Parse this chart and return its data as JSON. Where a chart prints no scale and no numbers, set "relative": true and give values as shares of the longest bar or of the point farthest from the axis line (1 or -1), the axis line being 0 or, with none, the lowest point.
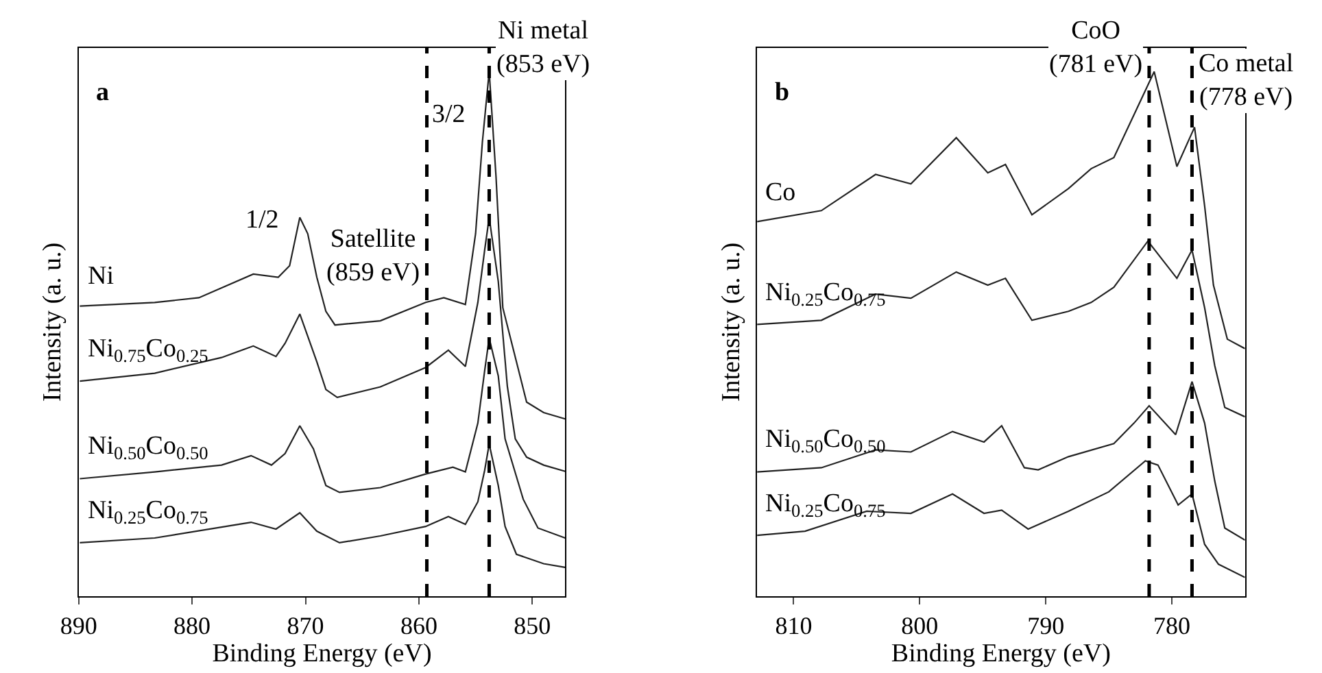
{
  "chart_data": [
    {
      "type": "line",
      "title": "a",
      "xlabel": "Binding Energy (eV)",
      "ylabel": "Intensity (a. u.)",
      "relative": true,
      "xlim": [
        890,
        847.1
      ],
      "xticks": [
        890,
        880,
        870,
        860,
        850
      ],
      "series": [
        {
          "name": "Ni",
          "color": "#222222",
          "x": [
            889.9,
            883.3,
            879.4,
            874.6,
            872.4,
            871.4,
            870.5,
            869.8,
            869.0,
            868.2,
            867.4,
            863.4,
            859.4,
            857.8,
            855.9,
            855.0,
            854.4,
            853.8,
            853.2,
            852.6,
            851.4,
            850.5,
            849.0,
            847.1
          ],
          "values": [
            0.553,
            0.56,
            0.569,
            0.614,
            0.608,
            0.63,
            0.722,
            0.691,
            0.608,
            0.543,
            0.517,
            0.525,
            0.56,
            0.569,
            0.556,
            0.691,
            0.866,
            1.0,
            0.8,
            0.55,
            0.447,
            0.37,
            0.35,
            0.338
          ]
        },
        {
          "name": "Ni$_{0.75}$Co$_{0.25}$",
          "color": "#222222",
          "x": [
            889.9,
            883.3,
            877.4,
            874.6,
            872.6,
            871.8,
            870.5,
            869.0,
            868.2,
            867.2,
            863.4,
            859.4,
            857.4,
            855.9,
            854.8,
            854.2,
            853.8,
            853.0,
            852.2,
            851.5,
            850.5,
            849.0,
            847.1
          ],
          "values": [
            0.41,
            0.425,
            0.455,
            0.477,
            0.457,
            0.482,
            0.538,
            0.447,
            0.394,
            0.379,
            0.399,
            0.436,
            0.469,
            0.438,
            0.56,
            0.66,
            0.722,
            0.6,
            0.4,
            0.3,
            0.265,
            0.25,
            0.238
          ]
        },
        {
          "name": "Ni$_{0.50}$Co$_{0.50}$",
          "color": "#222222",
          "x": [
            889.9,
            883.3,
            877.4,
            874.8,
            873.0,
            871.8,
            870.5,
            869.3,
            868.2,
            867.0,
            863.4,
            859.4,
            857.0,
            855.9,
            854.8,
            854.2,
            853.8,
            853.0,
            852.4,
            850.8,
            849.5,
            847.1
          ],
          "values": [
            0.224,
            0.237,
            0.25,
            0.268,
            0.25,
            0.272,
            0.325,
            0.281,
            0.211,
            0.198,
            0.207,
            0.233,
            0.246,
            0.237,
            0.33,
            0.43,
            0.492,
            0.42,
            0.3,
            0.185,
            0.13,
            0.111
          ]
        },
        {
          "name": "Ni$_{0.25}$Co$_{0.75}$",
          "color": "#222222",
          "x": [
            889.9,
            883.3,
            874.8,
            872.6,
            870.5,
            869.0,
            867.0,
            863.4,
            859.4,
            857.4,
            855.9,
            854.8,
            854.2,
            853.8,
            853.0,
            852.4,
            851.4,
            849.0,
            847.1
          ],
          "values": [
            0.102,
            0.111,
            0.141,
            0.128,
            0.159,
            0.124,
            0.102,
            0.115,
            0.133,
            0.152,
            0.137,
            0.18,
            0.24,
            0.29,
            0.211,
            0.133,
            0.08,
            0.062,
            0.055
          ]
        }
      ],
      "ref_lines": [
        {
          "axis": "x",
          "value": 859.3,
          "line_style": "dashed",
          "color": "#000000",
          "label": "Satellite\n(859 eV)"
        },
        {
          "axis": "x",
          "value": 853.8,
          "line_style": "dashed",
          "color": "#000000",
          "label": "Ni metal\n(853 eV)"
        }
      ],
      "annotations": [
        {
          "text": "1/2",
          "x": 873.8,
          "y": 0.717
        },
        {
          "text": "3/2",
          "x": 857.4,
          "y": 0.919
        }
      ]
    },
    {
      "type": "line",
      "title": "b",
      "xlabel": "Binding Energy (eV)",
      "ylabel": "Intensity (a. u.)",
      "relative": true,
      "xlim": [
        812.9,
        774.2
      ],
      "xticks": [
        810,
        800,
        790,
        780
      ],
      "series": [
        {
          "name": "Co",
          "color": "#222222",
          "x": [
            812.9,
            807.8,
            803.5,
            800.7,
            797.1,
            794.6,
            793.2,
            791.1,
            788.2,
            786.4,
            784.6,
            782.8,
            781.4,
            779.6,
            778.2,
            777.4,
            776.7,
            775.6,
            774.2
          ],
          "values": [
            0.714,
            0.735,
            0.804,
            0.786,
            0.874,
            0.807,
            0.823,
            0.727,
            0.777,
            0.815,
            0.836,
            0.928,
            1.0,
            0.819,
            0.894,
            0.744,
            0.593,
            0.49,
            0.472
          ]
        },
        {
          "name": "Ni$_{0.25}$Co$_{0.75}$",
          "color": "#222222",
          "x": [
            812.9,
            807.8,
            803.5,
            800.7,
            797.1,
            794.6,
            793.2,
            791.1,
            788.2,
            786.4,
            784.6,
            781.9,
            779.6,
            778.4,
            777.4,
            776.6,
            775.8,
            774.2
          ],
          "values": [
            0.518,
            0.526,
            0.576,
            0.568,
            0.618,
            0.593,
            0.606,
            0.526,
            0.543,
            0.56,
            0.589,
            0.677,
            0.606,
            0.66,
            0.55,
            0.44,
            0.36,
            0.342
          ]
        },
        {
          "name": "Ni$_{0.50}$Co$_{0.50}$",
          "color": "#222222",
          "x": [
            812.9,
            807.8,
            803.5,
            800.7,
            797.4,
            794.9,
            793.5,
            791.7,
            790.6,
            788.2,
            784.6,
            783.0,
            781.8,
            779.7,
            778.4,
            777.4,
            776.6,
            775.8,
            774.2
          ],
          "values": [
            0.237,
            0.245,
            0.279,
            0.275,
            0.314,
            0.294,
            0.325,
            0.245,
            0.241,
            0.266,
            0.291,
            0.33,
            0.363,
            0.308,
            0.409,
            0.33,
            0.22,
            0.13,
            0.107
          ]
        },
        {
          "name": "Ni$_{0.25}$Co$_{0.75}$",
          "color": "#222222",
          "x": [
            812.9,
            809.1,
            804.2,
            800.7,
            797.4,
            794.9,
            793.5,
            791.4,
            788.2,
            785.0,
            782.1,
            781.1,
            779.5,
            778.4,
            777.4,
            776.3,
            774.2
          ],
          "values": [
            0.116,
            0.124,
            0.162,
            0.158,
            0.195,
            0.158,
            0.164,
            0.128,
            0.162,
            0.199,
            0.258,
            0.25,
            0.174,
            0.195,
            0.099,
            0.061,
            0.036
          ]
        }
      ],
      "ref_lines": [
        {
          "axis": "x",
          "value": 781.8,
          "line_style": "dashed",
          "color": "#000000",
          "label": "CoO\n(781 eV)"
        },
        {
          "axis": "x",
          "value": 778.4,
          "line_style": "dashed",
          "color": "#000000",
          "label": "Co metal\n(778 eV)"
        }
      ]
    }
  ]
}
